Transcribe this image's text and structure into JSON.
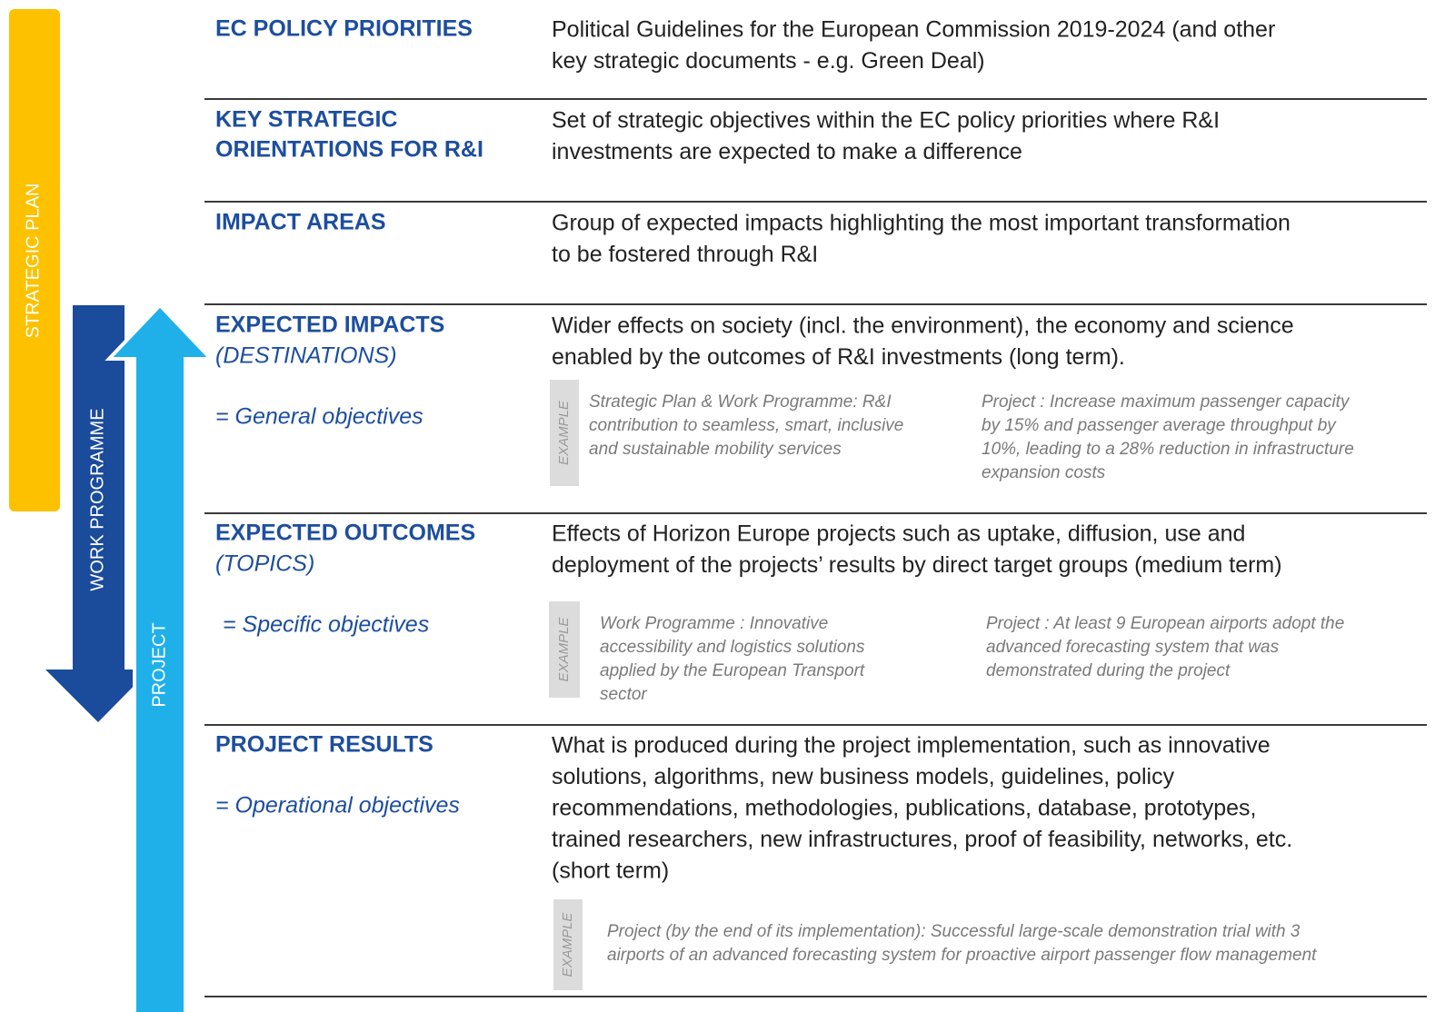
{
  "side_labels": {
    "strategic_plan": "STRATEGIC PLAN",
    "work_programme": "WORK PROGRAMME",
    "project": "PROJECT"
  },
  "rows": [
    {
      "term": [
        "EC POLICY PRIORITIES"
      ],
      "description": [
        "Political Guidelines for the European Commission 2019-2024 (and other",
        "key strategic documents - e.g. Green Deal)"
      ]
    },
    {
      "term": [
        "KEY STRATEGIC",
        "ORIENTATIONS FOR R&I"
      ],
      "description": [
        "Set of strategic objectives within the EC policy priorities where R&I",
        "investments are expected to make a difference"
      ]
    },
    {
      "term": [
        "IMPACT AREAS"
      ],
      "description": [
        "Group of expected impacts highlighting the most important transformation",
        "to be fostered through R&I"
      ]
    },
    {
      "term": [
        "EXPECTED IMPACTS"
      ],
      "subterm": "(DESTINATIONS)",
      "objective": "= General objectives",
      "description": [
        "Wider effects on society (incl. the environment), the economy and science",
        "enabled by the outcomes of R&I investments (long term)."
      ],
      "example": {
        "label": "EXAMPLE",
        "columns": [
          [
            "Strategic Plan & Work Programme: R&I",
            "contribution to seamless, smart, inclusive",
            "and sustainable mobility services"
          ],
          [
            "Project : Increase maximum passenger capacity",
            "by 15% and passenger average throughput by",
            "10%, leading to a 28% reduction in infrastructure",
            "expansion costs"
          ]
        ]
      }
    },
    {
      "term": [
        "EXPECTED OUTCOMES"
      ],
      "subterm": "(TOPICS)",
      "objective": "= Specific objectives",
      "description": [
        "Effects of Horizon Europe projects such as uptake, diffusion, use and",
        "deployment of the projects’ results by direct target groups (medium term)"
      ],
      "example": {
        "label": "EXAMPLE",
        "columns": [
          [
            "Work Programme : Innovative",
            "accessibility and logistics solutions",
            "applied by the European Transport",
            "sector"
          ],
          [
            "Project : At least 9 European airports adopt the",
            "advanced forecasting system that was",
            "demonstrated during the project"
          ]
        ]
      }
    },
    {
      "term": [
        "PROJECT RESULTS"
      ],
      "objective": "= Operational objectives",
      "description": [
        "What is produced during the project implementation, such as innovative",
        "solutions, algorithms, new business models, guidelines, policy",
        "recommendations, methodologies, publications, database, prototypes,",
        "trained researchers, new infrastructures, proof of feasibility, networks, etc.",
        "(short term)"
      ],
      "example": {
        "label": "EXAMPLE",
        "columns": [
          [
            "Project (by the end of its implementation):  Successful large-scale demonstration trial with 3",
            "airports of an advanced forecasting system for proactive airport passenger flow management"
          ]
        ]
      }
    }
  ]
}
